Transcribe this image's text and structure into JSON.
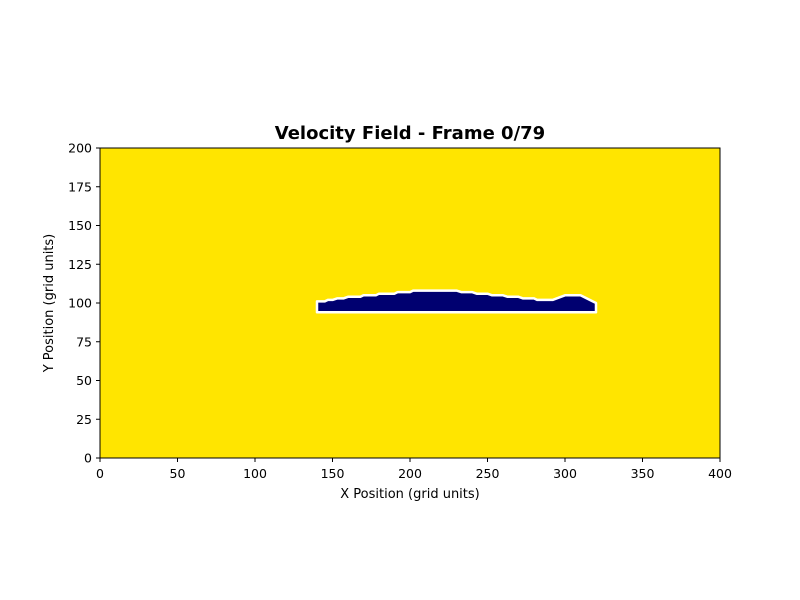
{
  "chart_data": {
    "type": "heatmap",
    "title": "Velocity Field - Frame 0/79",
    "xlabel": "X Position (grid units)",
    "ylabel": "Y Position (grid units)",
    "xlim": [
      0,
      400
    ],
    "ylim": [
      0,
      200
    ],
    "x_ticks": [
      0,
      50,
      100,
      150,
      200,
      250,
      300,
      350,
      400
    ],
    "y_ticks": [
      0,
      25,
      50,
      75,
      100,
      125,
      150,
      175,
      200
    ],
    "grid": false,
    "background_color": "#FFE500",
    "obstacle": {
      "fill_color": "#000070",
      "outline_color": "#ffffff",
      "outline": [
        [
          140,
          94
        ],
        [
          140,
          101
        ],
        [
          145,
          101
        ],
        [
          147,
          102
        ],
        [
          150,
          102
        ],
        [
          153,
          103
        ],
        [
          157,
          103
        ],
        [
          160,
          104
        ],
        [
          168,
          104
        ],
        [
          170,
          105
        ],
        [
          178,
          105
        ],
        [
          180,
          106
        ],
        [
          190,
          106
        ],
        [
          192,
          107
        ],
        [
          200,
          107
        ],
        [
          202,
          108
        ],
        [
          230,
          108
        ],
        [
          233,
          107
        ],
        [
          240,
          107
        ],
        [
          243,
          106
        ],
        [
          250,
          106
        ],
        [
          253,
          105
        ],
        [
          260,
          105
        ],
        [
          263,
          104
        ],
        [
          270,
          104
        ],
        [
          273,
          103
        ],
        [
          280,
          103
        ],
        [
          282,
          102
        ],
        [
          292,
          102
        ],
        [
          300,
          105
        ],
        [
          310,
          105
        ],
        [
          320,
          100
        ],
        [
          320,
          94
        ]
      ]
    }
  }
}
